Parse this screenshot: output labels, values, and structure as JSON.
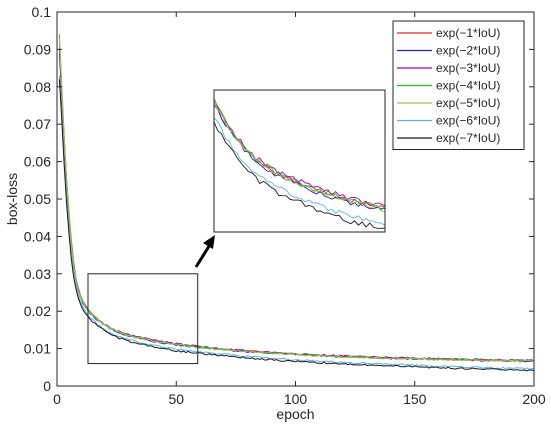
{
  "chart_data": {
    "type": "line",
    "xlabel": "epoch",
    "ylabel": "box-loss",
    "xlim": [
      0,
      200
    ],
    "ylim": [
      0,
      0.1
    ],
    "xticks": [
      0,
      50,
      100,
      150,
      200
    ],
    "xtick_labels": [
      "0",
      "50",
      "100",
      "150",
      "200"
    ],
    "yticks": [
      0,
      0.01,
      0.02,
      0.03,
      0.04,
      0.05,
      0.06,
      0.07,
      0.08,
      0.09,
      0.1
    ],
    "ytick_labels": [
      "0",
      "0.01",
      "0.02",
      "0.03",
      "0.04",
      "0.05",
      "0.06",
      "0.07",
      "0.08",
      "0.09",
      "0.1"
    ],
    "grid": false,
    "legend_position": "top-right",
    "inset": {
      "zoom_x_range": [
        13,
        59
      ],
      "zoom_y_range": [
        0.006,
        0.03
      ],
      "arrow": true
    },
    "series": [
      {
        "name": "exp(−1*IoU)",
        "color": "#d62728",
        "x": [
          1,
          2,
          3,
          4,
          5,
          6,
          7,
          8,
          9,
          10,
          12,
          14,
          16,
          18,
          20,
          25,
          30,
          40,
          50,
          60,
          70,
          80,
          90,
          100,
          120,
          140,
          160,
          180,
          200
        ],
        "values": [
          0.091,
          0.078,
          0.066,
          0.055,
          0.046,
          0.038,
          0.032,
          0.028,
          0.0255,
          0.0235,
          0.021,
          0.0195,
          0.0183,
          0.0172,
          0.0163,
          0.0146,
          0.0135,
          0.0121,
          0.0111,
          0.0104,
          0.0098,
          0.0093,
          0.0089,
          0.0085,
          0.0079,
          0.0075,
          0.0072,
          0.0069,
          0.0067
        ]
      },
      {
        "name": "exp(−2*IoU)",
        "color": "#1f1fd6",
        "x": [
          1,
          2,
          3,
          4,
          5,
          6,
          7,
          8,
          9,
          10,
          12,
          14,
          16,
          18,
          20,
          25,
          30,
          40,
          50,
          60,
          70,
          80,
          90,
          100,
          120,
          140,
          160,
          180,
          200
        ],
        "values": [
          0.089,
          0.077,
          0.065,
          0.054,
          0.045,
          0.038,
          0.032,
          0.028,
          0.0254,
          0.0234,
          0.0209,
          0.0194,
          0.0182,
          0.0171,
          0.0162,
          0.0145,
          0.0134,
          0.012,
          0.011,
          0.0103,
          0.0097,
          0.0092,
          0.0088,
          0.0084,
          0.0078,
          0.0074,
          0.0071,
          0.0068,
          0.0066
        ]
      },
      {
        "name": "exp(−3*IoU)",
        "color": "#b000b0",
        "x": [
          1,
          2,
          3,
          4,
          5,
          6,
          7,
          8,
          9,
          10,
          12,
          14,
          16,
          18,
          20,
          25,
          30,
          40,
          50,
          60,
          70,
          80,
          90,
          100,
          120,
          140,
          160,
          180,
          200
        ],
        "values": [
          0.09,
          0.078,
          0.066,
          0.055,
          0.046,
          0.039,
          0.033,
          0.0285,
          0.026,
          0.024,
          0.0213,
          0.0197,
          0.0185,
          0.0174,
          0.0165,
          0.0148,
          0.0137,
          0.0123,
          0.0113,
          0.0105,
          0.0099,
          0.0094,
          0.009,
          0.0086,
          0.008,
          0.0076,
          0.0073,
          0.007,
          0.0068
        ]
      },
      {
        "name": "exp(−4*IoU)",
        "color": "#22c122",
        "x": [
          1,
          2,
          3,
          4,
          5,
          6,
          7,
          8,
          9,
          10,
          12,
          14,
          16,
          18,
          20,
          25,
          30,
          40,
          50,
          60,
          70,
          80,
          90,
          100,
          120,
          140,
          160,
          180,
          200
        ],
        "values": [
          0.094,
          0.08,
          0.067,
          0.056,
          0.047,
          0.039,
          0.033,
          0.0285,
          0.0258,
          0.0238,
          0.0211,
          0.0195,
          0.0184,
          0.0173,
          0.0164,
          0.0147,
          0.0136,
          0.0122,
          0.0112,
          0.0104,
          0.0098,
          0.0093,
          0.0089,
          0.0085,
          0.0079,
          0.0075,
          0.0072,
          0.0069,
          0.0067
        ]
      },
      {
        "name": "exp(−5*IoU)",
        "color": "#b5b55a",
        "x": [
          1,
          2,
          3,
          4,
          5,
          6,
          7,
          8,
          9,
          10,
          12,
          14,
          16,
          18,
          20,
          25,
          30,
          40,
          50,
          60,
          70,
          80,
          90,
          100,
          120,
          140,
          160,
          180,
          200
        ],
        "values": [
          0.093,
          0.079,
          0.066,
          0.055,
          0.046,
          0.038,
          0.032,
          0.028,
          0.0256,
          0.0236,
          0.021,
          0.0194,
          0.0183,
          0.0172,
          0.0163,
          0.0146,
          0.0135,
          0.0121,
          0.0111,
          0.0103,
          0.0097,
          0.0092,
          0.0088,
          0.0084,
          0.0078,
          0.0074,
          0.0071,
          0.0068,
          0.0066
        ]
      },
      {
        "name": "exp(−6*IoU)",
        "color": "#5ab4e6",
        "x": [
          1,
          2,
          3,
          4,
          5,
          6,
          7,
          8,
          9,
          10,
          12,
          14,
          16,
          18,
          20,
          25,
          30,
          40,
          50,
          60,
          70,
          80,
          90,
          100,
          120,
          140,
          160,
          180,
          200
        ],
        "values": [
          0.083,
          0.072,
          0.06,
          0.05,
          0.042,
          0.035,
          0.03,
          0.0265,
          0.024,
          0.0222,
          0.0198,
          0.0183,
          0.0171,
          0.016,
          0.0151,
          0.0134,
          0.0123,
          0.0109,
          0.0098,
          0.0091,
          0.0085,
          0.0079,
          0.0074,
          0.007,
          0.0063,
          0.0058,
          0.0053,
          0.0049,
          0.0046
        ]
      },
      {
        "name": "exp(−7*IoU)",
        "color": "#1a1a1a",
        "x": [
          1,
          2,
          3,
          4,
          5,
          6,
          7,
          8,
          9,
          10,
          12,
          14,
          16,
          18,
          20,
          25,
          30,
          40,
          50,
          60,
          70,
          80,
          90,
          100,
          120,
          140,
          160,
          180,
          200
        ],
        "values": [
          0.082,
          0.071,
          0.059,
          0.049,
          0.041,
          0.034,
          0.029,
          0.0258,
          0.0234,
          0.0216,
          0.0193,
          0.0178,
          0.0166,
          0.0156,
          0.0147,
          0.013,
          0.0119,
          0.0105,
          0.0094,
          0.0087,
          0.0081,
          0.0075,
          0.007,
          0.0066,
          0.0059,
          0.0054,
          0.0049,
          0.0045,
          0.0042
        ]
      }
    ]
  }
}
